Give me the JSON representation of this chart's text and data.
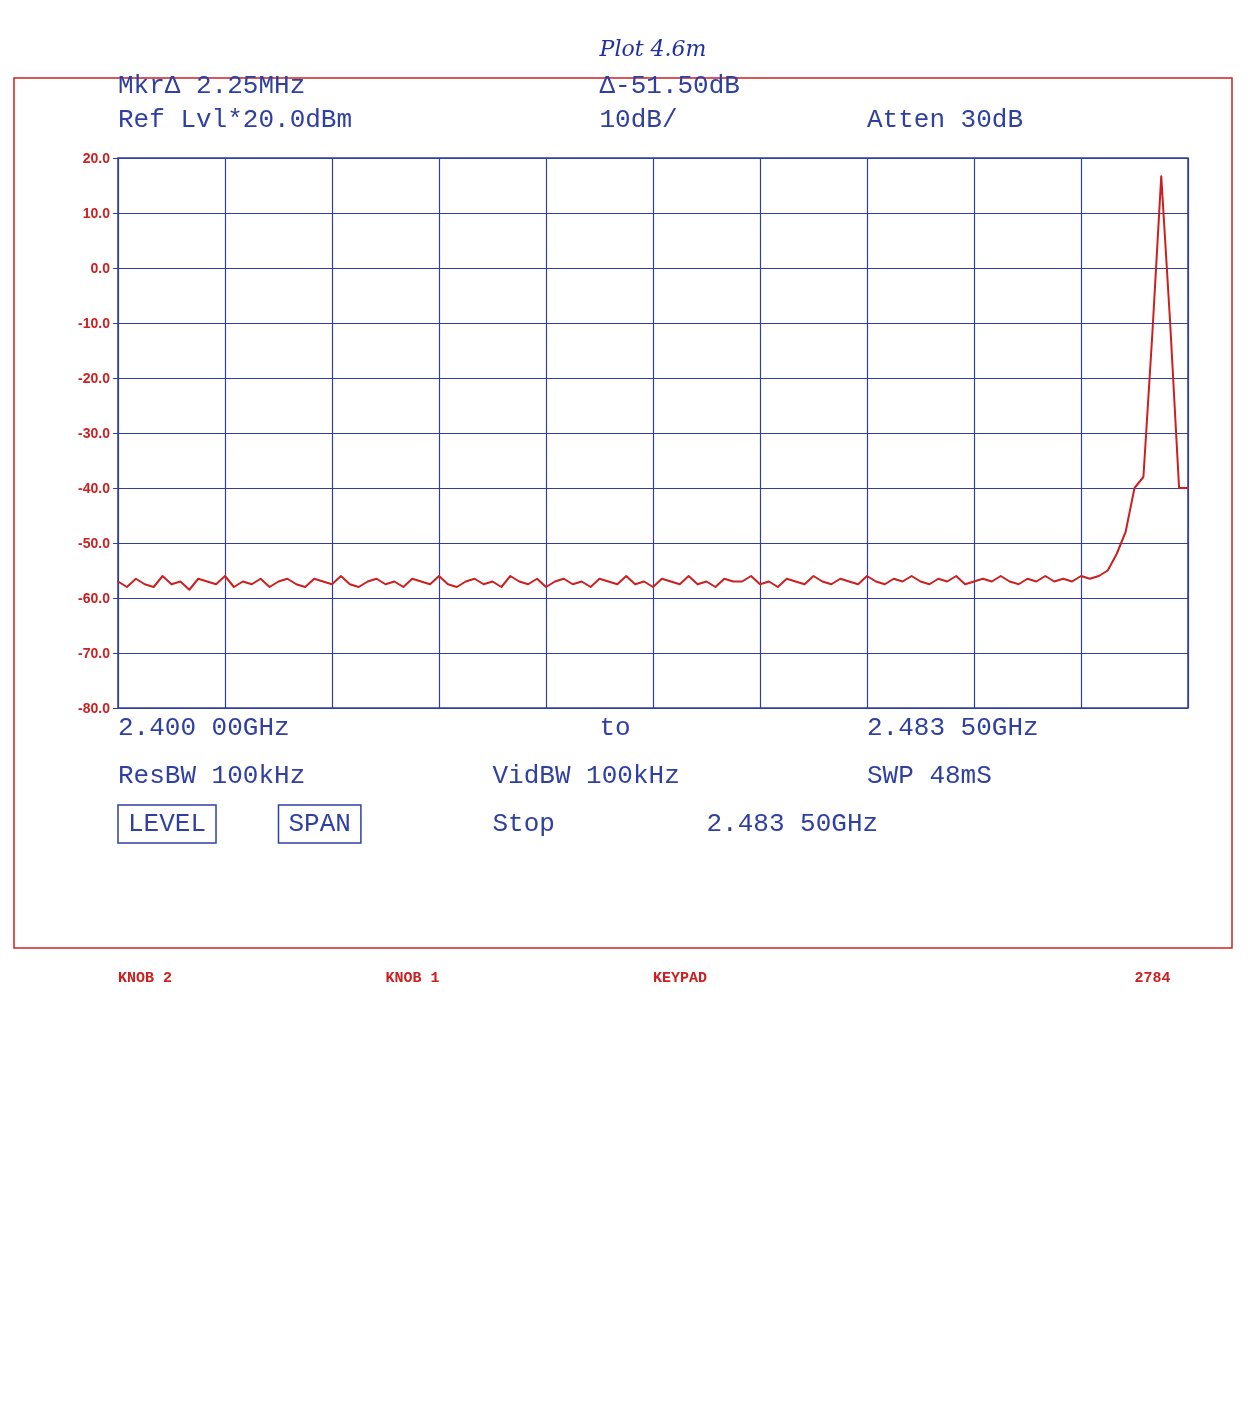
{
  "chart_data": {
    "type": "line",
    "title": "Plot 4.6m",
    "categories": [
      null,
      null,
      null,
      null,
      null,
      null,
      null,
      null,
      null,
      null,
      null,
      null,
      null,
      null,
      null,
      null,
      null,
      null,
      null,
      null,
      null,
      null,
      null,
      null,
      null,
      null,
      null,
      null,
      null,
      null,
      null,
      null,
      null,
      null,
      null,
      null,
      null,
      null,
      null,
      null,
      null,
      null,
      null,
      null,
      null,
      null,
      null,
      null,
      null,
      null,
      null,
      null,
      null,
      null,
      null,
      null,
      null,
      null,
      null,
      null,
      null,
      null,
      null,
      null,
      null,
      null,
      null,
      null,
      null,
      null,
      null,
      null,
      null,
      null,
      null,
      null,
      null,
      null,
      null,
      null,
      null,
      null,
      null,
      null,
      null,
      null,
      null,
      null,
      null,
      null,
      null,
      null,
      null,
      null,
      null,
      null,
      null,
      null,
      null,
      null,
      null,
      null,
      null,
      null,
      null,
      null,
      null,
      null,
      null,
      null,
      null,
      null,
      null,
      null,
      null,
      null,
      null,
      null,
      null,
      null,
      null
    ],
    "series": [
      {
        "color": "#cc2020",
        "values": [
          -57,
          -58,
          -56.5,
          -57.5,
          -58,
          -56,
          -57.5,
          -57,
          -58.5,
          -56.5,
          -57,
          -57.5,
          -56,
          -58,
          -57,
          -57.5,
          -56.5,
          -58,
          -57,
          -56.5,
          -57.5,
          -58,
          -56.5,
          -57,
          -57.5,
          -56,
          -57.5,
          -58,
          -57,
          -56.5,
          -57.5,
          -57,
          -58,
          -56.5,
          -57,
          -57.5,
          -56,
          -57.5,
          -58,
          -57,
          -56.5,
          -57.5,
          -57,
          -58,
          -56,
          -57,
          -57.5,
          -56.5,
          -58,
          -57,
          -56.5,
          -57.5,
          -57,
          -58,
          -56.5,
          -57,
          -57.5,
          -56,
          -57.5,
          -57,
          -58,
          -56.5,
          -57,
          -57.5,
          -56,
          -57.5,
          -57,
          -58,
          -56.5,
          -57,
          -57,
          -56,
          -57.5,
          -57,
          -58,
          -56.5,
          -57,
          -57.5,
          -56,
          -57,
          -57.5,
          -56.5,
          -57,
          -57.5,
          -56,
          -57,
          -57.5,
          -56.5,
          -57,
          -56,
          -57,
          -57.5,
          -56.5,
          -57,
          -56,
          -57.5,
          -57,
          -56.5,
          -57,
          -56,
          -57,
          -57.5,
          -56.5,
          -57,
          -56,
          -57,
          -56.5,
          -57,
          -56,
          -56.5,
          -56,
          -55,
          -52,
          -48,
          -40,
          -38,
          -12,
          16.7,
          -10,
          -40,
          -40
        ]
      }
    ],
    "ylim": [
      -80,
      20
    ],
    "yticks": [
      {
        "value": 20,
        "label": "20.0"
      },
      {
        "value": 10,
        "label": "10.0"
      },
      {
        "value": 0,
        "label": "0.0"
      },
      {
        "value": -10,
        "label": "-10.0"
      },
      {
        "value": -20,
        "label": "-20.0"
      },
      {
        "value": -30,
        "label": "-30.0"
      },
      {
        "value": -40,
        "label": "-40.0"
      },
      {
        "value": -50,
        "label": "-50.0"
      },
      {
        "value": -60,
        "label": "-60.0"
      },
      {
        "value": -70,
        "label": "-70.0"
      },
      {
        "value": -80,
        "label": "-80.0"
      }
    ],
    "grid": true,
    "tick_labels": "y",
    "line_style": "solid",
    "annotations": [
      "MkrΔ 2.25MHz",
      "Δ-51.50dB",
      "Ref Lvl*20.0dBm",
      "10dB/",
      "Atten 30dB",
      "2.400 00GHz",
      "to",
      "2.483 50GHz",
      "ResBW 100kHz",
      "VidBW 100kHz",
      "SWP 48mS",
      "LEVEL",
      "SPAN",
      "Stop",
      "2.483 50GHz",
      "KNOB 2",
      "KNOB 1",
      "KEYPAD",
      "2784"
    ]
  }
}
